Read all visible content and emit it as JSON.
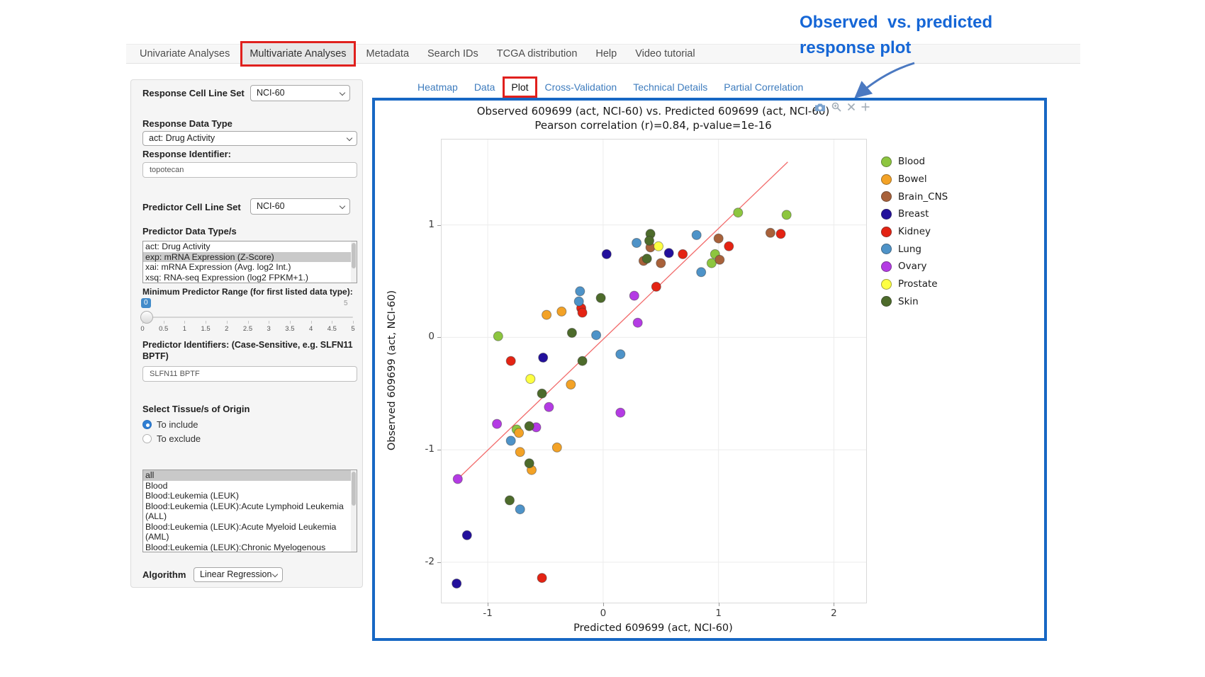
{
  "annotation": {
    "line1": "Observed  vs. predicted",
    "line2": "response plot",
    "color": "#1566d6",
    "arrow_color": "#4b79c1"
  },
  "nav": {
    "items": [
      "Univariate Analyses",
      "Multivariate Analyses",
      "Metadata",
      "Search IDs",
      "TCGA distribution",
      "Help",
      "Video tutorial"
    ],
    "active": "Multivariate Analyses",
    "highlight_color": "#e0201d"
  },
  "tabs": {
    "items": [
      "Heatmap",
      "Data",
      "Plot",
      "Cross-Validation",
      "Technical Details",
      "Partial Correlation"
    ],
    "active": "Plot",
    "link_color": "#3e7cbe"
  },
  "sidebar": {
    "response_cell_line_set": {
      "label": "Response Cell Line Set",
      "value": "NCI-60"
    },
    "response_data_type": {
      "label": "Response Data Type",
      "value": "act: Drug Activity"
    },
    "response_identifier": {
      "label": "Response Identifier:",
      "value": "topotecan"
    },
    "predictor_cell_line_set": {
      "label": "Predictor Cell Line Set",
      "value": "NCI-60"
    },
    "predictor_data_types": {
      "label": "Predictor Data Type/s",
      "options": [
        "act: Drug Activity",
        "exp: mRNA Expression (Z-Score)",
        "xai: mRNA Expression (Avg. log2 Int.)",
        "xsq: RNA-seq Expression (log2 FPKM+1.)"
      ],
      "selected": "exp: mRNA Expression (Z-Score)"
    },
    "min_predictor_range": {
      "label": "Minimum Predictor Range (for first listed data type):",
      "value": "0",
      "max_label": "5",
      "ticks": [
        "0",
        "0.5",
        "1",
        "1.5",
        "2",
        "2.5",
        "3",
        "3.5",
        "4",
        "4.5",
        "5"
      ]
    },
    "predictor_identifiers": {
      "label": "Predictor Identifiers: (Case-Sensitive, e.g. SLFN11 BPTF)",
      "value": "SLFN11 BPTF"
    },
    "tissue_origin": {
      "label": "Select Tissue/s of Origin",
      "options": [
        {
          "label": "To include",
          "checked": true
        },
        {
          "label": "To exclude",
          "checked": false
        }
      ]
    },
    "tissue_list": {
      "options": [
        "all",
        "Blood",
        "Blood:Leukemia (LEUK)",
        "Blood:Leukemia (LEUK):Acute Lymphoid Leukemia (ALL)",
        "Blood:Leukemia (LEUK):Acute Myeloid Leukemia (AML)",
        "Blood:Leukemia (LEUK):Chronic Myelogenous Leukemia (CML)"
      ],
      "selected": "all"
    },
    "algorithm": {
      "label": "Algorithm",
      "value": "Linear Regression"
    }
  },
  "modebar": {
    "icons": [
      "camera-icon",
      "zoom-icon",
      "close-icon",
      "crosshair-icon"
    ],
    "color": "#a3aeb8"
  },
  "chart_data": {
    "type": "scatter",
    "title": "Observed 609699 (act, NCI-60) vs. Predicted 609699 (act, NCI-60)",
    "subtitle": "Pearson correlation (r)=0.84, p-value=1e-16",
    "xlabel": "Predicted 609699 (act, NCI-60)",
    "ylabel": "Observed 609699 (act, NCI-60)",
    "xlim": [
      -1.4,
      2.28
    ],
    "ylim": [
      -2.36,
      1.76
    ],
    "xticks": [
      -1,
      0,
      1,
      2
    ],
    "yticks": [
      1,
      0,
      -1,
      -2
    ],
    "grid": true,
    "legend_position": "right",
    "identity_line": {
      "x": [
        -1.26,
        1.6
      ],
      "y": [
        -1.26,
        1.56
      ],
      "color": "#f26b6b"
    },
    "series": [
      {
        "name": "Blood",
        "color": "#8dc63f",
        "points": [
          [
            1.17,
            1.11
          ],
          [
            1.59,
            1.09
          ],
          [
            0.97,
            0.74
          ],
          [
            0.94,
            0.66
          ],
          [
            -0.91,
            0.01
          ],
          [
            -0.75,
            -0.82
          ]
        ]
      },
      {
        "name": "Bowel",
        "color": "#f3a226",
        "points": [
          [
            -0.49,
            0.2
          ],
          [
            -0.36,
            0.23
          ],
          [
            -0.28,
            -0.42
          ],
          [
            -0.73,
            -0.85
          ],
          [
            -0.4,
            -0.98
          ],
          [
            -0.72,
            -1.02
          ],
          [
            -0.62,
            -1.18
          ]
        ]
      },
      {
        "name": "Brain_CNS",
        "color": "#a8613a",
        "points": [
          [
            1.45,
            0.93
          ],
          [
            1.0,
            0.88
          ],
          [
            0.41,
            0.8
          ],
          [
            1.01,
            0.69
          ],
          [
            0.35,
            0.68
          ],
          [
            0.5,
            0.66
          ]
        ]
      },
      {
        "name": "Breast",
        "color": "#23109c",
        "points": [
          [
            0.03,
            0.74
          ],
          [
            0.57,
            0.75
          ],
          [
            -0.52,
            -0.18
          ],
          [
            -1.18,
            -1.76
          ],
          [
            -1.27,
            -2.19
          ]
        ]
      },
      {
        "name": "Kidney",
        "color": "#e42313",
        "points": [
          [
            1.54,
            0.92
          ],
          [
            1.09,
            0.81
          ],
          [
            0.69,
            0.74
          ],
          [
            0.46,
            0.45
          ],
          [
            -0.19,
            0.26
          ],
          [
            -0.18,
            0.22
          ],
          [
            -0.8,
            -0.21
          ],
          [
            -0.53,
            -2.14
          ]
        ]
      },
      {
        "name": "Lung",
        "color": "#4e93c8",
        "points": [
          [
            0.81,
            0.91
          ],
          [
            0.29,
            0.84
          ],
          [
            0.85,
            0.58
          ],
          [
            -0.2,
            0.41
          ],
          [
            -0.21,
            0.32
          ],
          [
            -0.06,
            0.02
          ],
          [
            0.15,
            -0.15
          ],
          [
            -0.8,
            -0.92
          ],
          [
            -0.72,
            -1.53
          ]
        ]
      },
      {
        "name": "Ovary",
        "color": "#b43be4",
        "points": [
          [
            0.27,
            0.37
          ],
          [
            0.3,
            0.13
          ],
          [
            -0.47,
            -0.62
          ],
          [
            0.15,
            -0.67
          ],
          [
            -0.92,
            -0.77
          ],
          [
            -0.58,
            -0.8
          ],
          [
            -1.26,
            -1.26
          ]
        ]
      },
      {
        "name": "Prostate",
        "color": "#fdff42",
        "points": [
          [
            0.48,
            0.81
          ],
          [
            -0.63,
            -0.37
          ]
        ]
      },
      {
        "name": "Skin",
        "color": "#4d6b2b",
        "points": [
          [
            0.41,
            0.92
          ],
          [
            0.4,
            0.86
          ],
          [
            0.38,
            0.7
          ],
          [
            -0.02,
            0.35
          ],
          [
            -0.27,
            0.04
          ],
          [
            -0.18,
            -0.21
          ],
          [
            -0.53,
            -0.5
          ],
          [
            -0.64,
            -0.79
          ],
          [
            -0.64,
            -1.12
          ],
          [
            -0.81,
            -1.45
          ]
        ]
      }
    ]
  }
}
